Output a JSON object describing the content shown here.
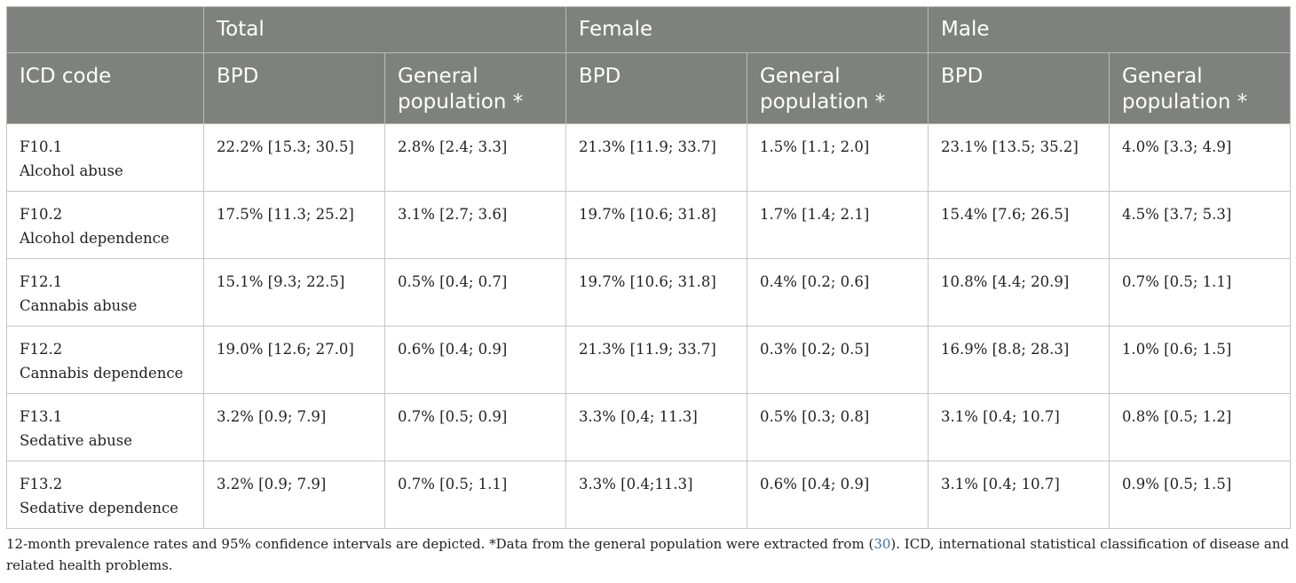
{
  "header": {
    "groups": [
      "Total",
      "Female",
      "Male"
    ],
    "icd_label": "ICD code",
    "sub": [
      "BPD",
      "General population *",
      "BPD",
      "General population *",
      "BPD",
      "General population *"
    ]
  },
  "rows": [
    {
      "code": "F10.1",
      "desc": "Alcohol abuse",
      "cells": [
        "22.2% [15.3; 30.5]",
        "2.8% [2.4; 3.3]",
        "21.3% [11.9; 33.7]",
        "1.5% [1.1; 2.0]",
        "23.1% [13.5; 35.2]",
        "4.0% [3.3; 4.9]"
      ]
    },
    {
      "code": "F10.2",
      "desc": "Alcohol dependence",
      "cells": [
        "17.5% [11.3; 25.2]",
        "3.1% [2.7; 3.6]",
        "19.7% [10.6; 31.8]",
        "1.7% [1.4; 2.1]",
        "15.4% [7.6; 26.5]",
        "4.5% [3.7; 5.3]"
      ]
    },
    {
      "code": "F12.1",
      "desc": "Cannabis abuse",
      "cells": [
        "15.1% [9.3; 22.5]",
        "0.5% [0.4; 0.7]",
        "19.7% [10.6; 31.8]",
        "0.4% [0.2; 0.6]",
        "10.8% [4.4; 20.9]",
        "0.7% [0.5; 1.1]"
      ]
    },
    {
      "code": "F12.2",
      "desc": "Cannabis dependence",
      "cells": [
        "19.0% [12.6; 27.0]",
        "0.6% [0.4; 0.9]",
        "21.3% [11.9; 33.7]",
        "0.3% [0.2; 0.5]",
        "16.9% [8.8; 28.3]",
        "1.0% [0.6; 1.5]"
      ]
    },
    {
      "code": "F13.1",
      "desc": "Sedative abuse",
      "cells": [
        "3.2% [0.9; 7.9]",
        "0.7% [0.5; 0.9]",
        "3.3% [0,4; 11.3]",
        "0.5% [0.3; 0.8]",
        "3.1% [0.4; 10.7]",
        "0.8% [0.5; 1.2]"
      ]
    },
    {
      "code": "F13.2",
      "desc": "Sedative dependence",
      "cells": [
        "3.2% [0.9; 7.9]",
        "0.7% [0.5; 1.1]",
        "3.3% [0.4;11.3]",
        "0.6% [0.4; 0.9]",
        "3.1% [0.4; 10.7]",
        "0.9% [0.5; 1.5]"
      ]
    }
  ],
  "footnote": {
    "before": "12-month prevalence rates and 95% confidence intervals are depicted. *Data from the general population were extracted from (",
    "ref": "30",
    "after": "). ICD, international statistical classification of disease and related health problems."
  }
}
